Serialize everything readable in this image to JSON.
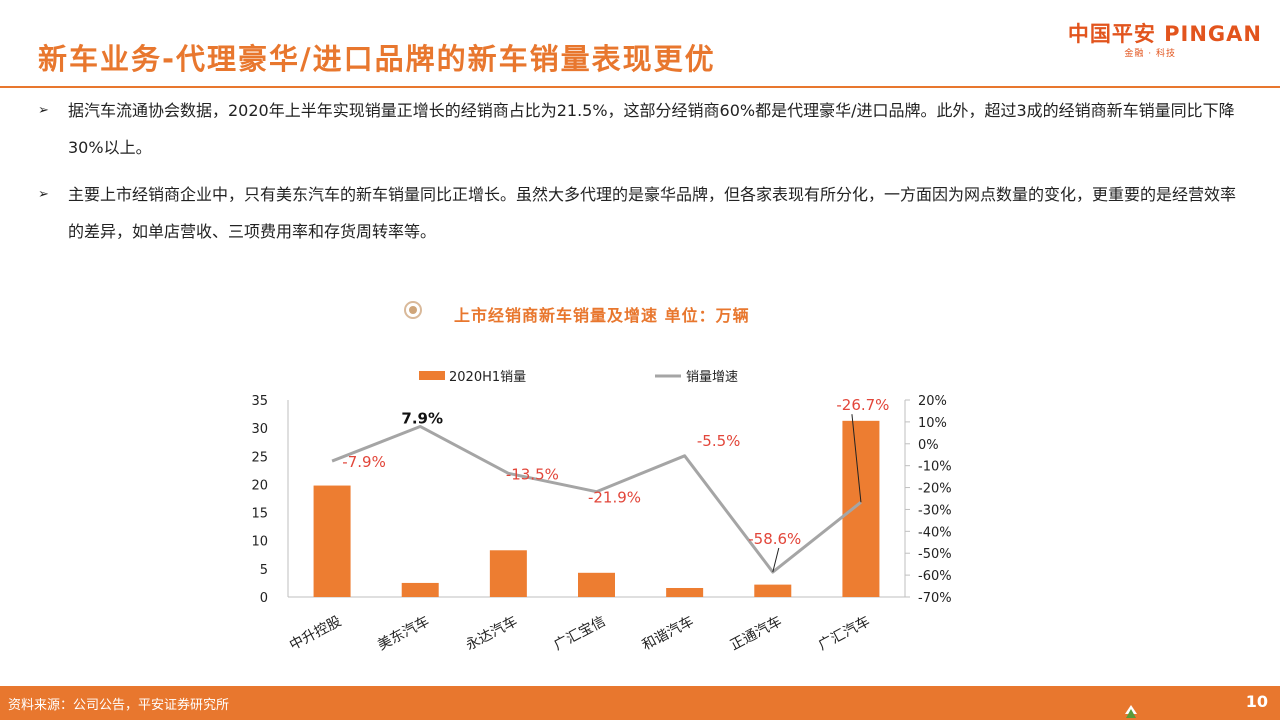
{
  "header": {
    "title": "新车业务-代理豪华/进口品牌的新车销量表现更优",
    "logo_main": "中国平安 PINGAN",
    "logo_sub": "金融 · 科技"
  },
  "bullets": [
    "据汽车流通协会数据，2020年上半年实现销量正增长的经销商占比为21.5%，这部分经销商60%都是代理豪华/进口品牌。此外，超过3成的经销商新车销量同比下降30%以上。",
    "主要上市经销商企业中，只有美东汽车的新车销量同比正增长。虽然大多代理的是豪华品牌，但各家表现有所分化，一方面因为网点数量的变化，更重要的是经营效率的差异，如单店营收、三项费用率和存货周转率等。"
  ],
  "chart_heading": "上市经销商新车销量及增速 单位：万辆",
  "footer": {
    "source": "资料来源：公司公告，平安证券研究所",
    "page": "10"
  },
  "colors": {
    "accent": "#e8772e",
    "bar": "#ed7d31",
    "line": "#a5a5a5",
    "label_red": "#e2463a"
  },
  "chart_data": {
    "type": "bar",
    "categories": [
      "中升控股",
      "美东汽车",
      "永达汽车",
      "广汇宝信",
      "和谐汽车",
      "正通汽车",
      "广汇汽车"
    ],
    "series": [
      {
        "name": "2020H1销量",
        "type": "bar",
        "axis": "left",
        "values": [
          19.8,
          2.5,
          8.3,
          4.3,
          1.6,
          2.2,
          31.3
        ]
      },
      {
        "name": "销量增速",
        "type": "line",
        "axis": "right",
        "values": [
          -7.9,
          7.9,
          -13.5,
          -21.9,
          -5.5,
          -58.6,
          -26.7
        ],
        "labels": [
          "-7.9%",
          "7.9%",
          "-13.5%",
          "-21.9%",
          "-5.5%",
          "-58.6%",
          "-26.7%"
        ]
      }
    ],
    "y_left": {
      "min": 0,
      "max": 35,
      "ticks": [
        "0",
        "5",
        "10",
        "15",
        "20",
        "25",
        "30",
        "35"
      ]
    },
    "y_right": {
      "min": -70,
      "max": 20,
      "ticks": [
        "20%",
        "10%",
        "0%",
        "-10%",
        "-20%",
        "-30%",
        "-40%",
        "-50%",
        "-60%",
        "-70%"
      ]
    },
    "legend_position": "top",
    "grid": false
  }
}
